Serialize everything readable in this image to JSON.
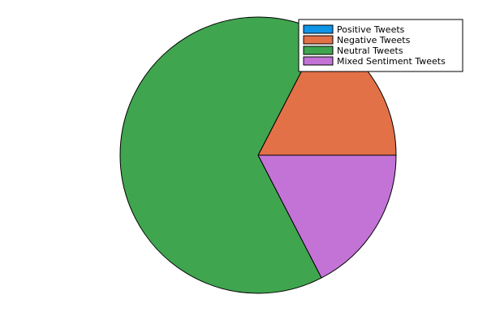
{
  "chart_data": {
    "type": "pie",
    "title": "",
    "legend_position": "top-right",
    "slices": [
      {
        "label": "Positive Tweets",
        "value": 0,
        "color": "#0f95e8"
      },
      {
        "label": "Negative Tweets",
        "value": 17.4,
        "color": "#e37148"
      },
      {
        "label": "Neutral Tweets",
        "value": 65.2,
        "color": "#40a54f"
      },
      {
        "label": "Mixed Sentiment Tweets",
        "value": 17.4,
        "color": "#c373d6"
      }
    ]
  }
}
